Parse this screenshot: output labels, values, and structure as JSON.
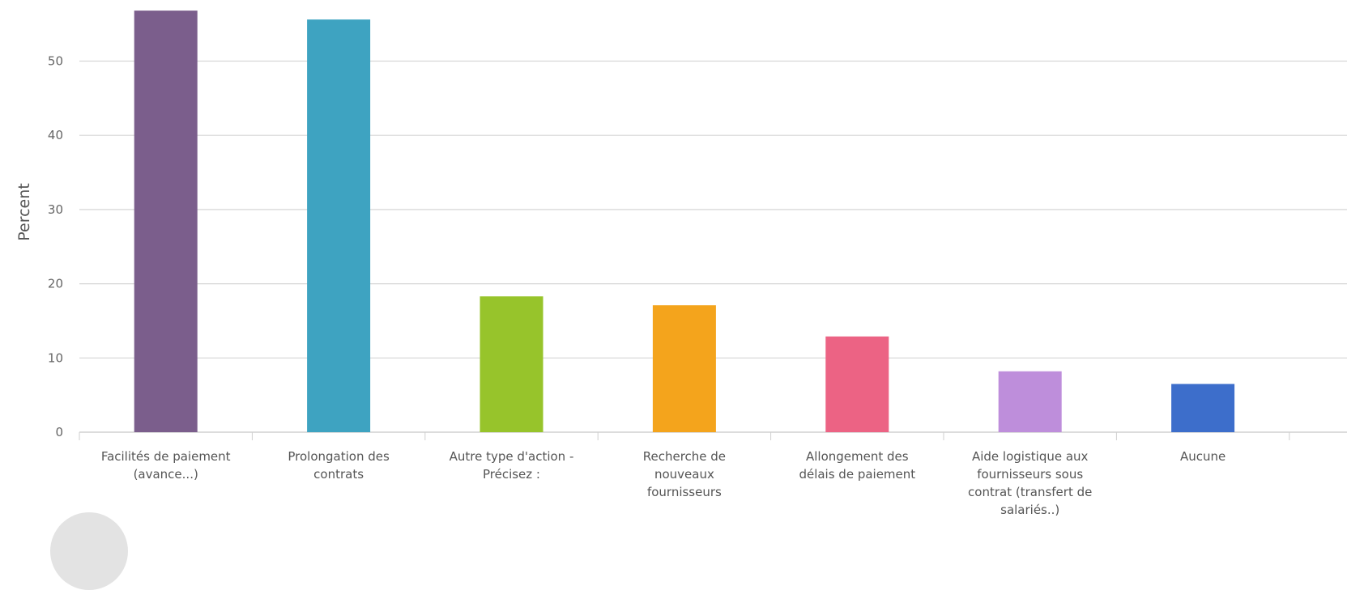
{
  "chart_data": {
    "type": "bar",
    "categories": [
      [
        "Facilités de paiement",
        "(avance...)"
      ],
      [
        "Prolongation des",
        "contrats"
      ],
      [
        "Autre type d'action -",
        "Précisez :"
      ],
      [
        "Recherche de",
        "nouveaux",
        "fournisseurs"
      ],
      [
        "Allongement des",
        "délais de paiement"
      ],
      [
        "Aide logistique aux",
        "fournisseurs sous",
        "contrat (transfert de",
        "salariés..)"
      ],
      [
        "Aucune"
      ]
    ],
    "values": [
      56.8,
      55.6,
      18.3,
      17.1,
      12.9,
      8.2,
      6.5
    ],
    "colors": [
      "#7b5e8c",
      "#3ea3c1",
      "#97c42b",
      "#f4a41c",
      "#ec6384",
      "#be8edb",
      "#3d6ecb"
    ],
    "ylabel": "Percent",
    "xlabel": "",
    "yticks": [
      0,
      10,
      20,
      30,
      40,
      50
    ],
    "ylim": [
      0,
      56.8
    ],
    "grid": true
  }
}
